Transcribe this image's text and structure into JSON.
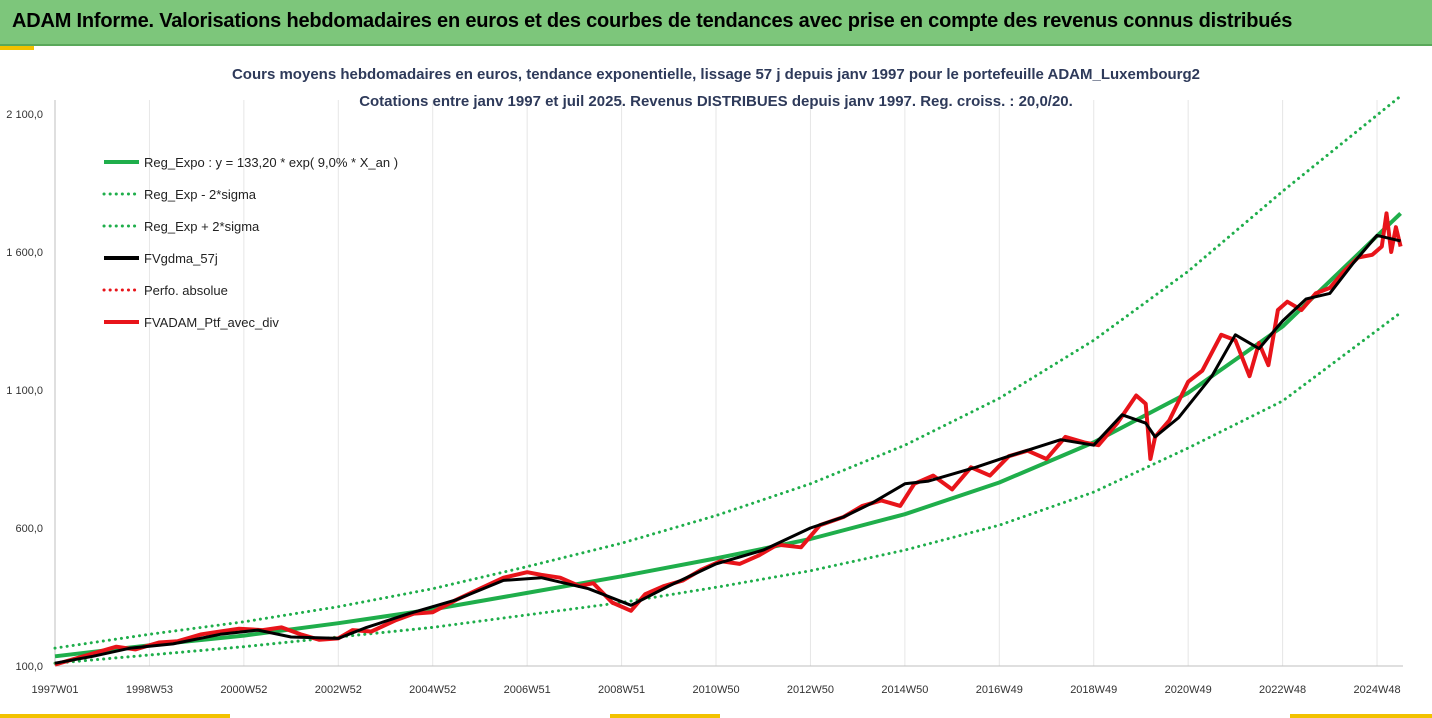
{
  "header": {
    "title": "ADAM Informe. Valorisations hebdomadaires en euros et des courbes de tendances avec prise en compte des revenus connus distribués"
  },
  "colors": {
    "banner": "#7dc67b",
    "accent": "#f2c200",
    "trend": "#1fae4b",
    "smooth": "#000000",
    "portfolio": "#e8141a",
    "grid": "#e6e6e6"
  },
  "chart_data": {
    "type": "line",
    "title": "Cours moyens hebdomadaires  en euros, tendance exponentielle, lissage 57 j depuis janv 1997 pour le portefeuille ADAM_Luxembourg2",
    "subtitle": "Cotations  entre janv 1997 et juil 2025. Revenus DISTRIBUES depuis janv 1997. Reg. croiss. : 20,0/20.",
    "xlabel": "",
    "ylabel": "",
    "ylim": [
      100,
      2100
    ],
    "xlim": [
      1997.0,
      2025.55
    ],
    "grid": "vertical",
    "legend_position": "top-left",
    "y_ticks": [
      "2 100,0",
      "1 600,0",
      "1 100,0",
      "600,0",
      "100,0"
    ],
    "y_tick_values": [
      2100,
      1600,
      1100,
      600,
      100
    ],
    "x_ticks": [
      "1997W01",
      "1998W53",
      "2000W52",
      "2002W52",
      "2004W52",
      "2006W51",
      "2008W51",
      "2010W50",
      "2012W50",
      "2014W50",
      "2016W49",
      "2018W49",
      "2020W49",
      "2022W48",
      "2024W48"
    ],
    "x_tick_values": [
      1997.0,
      1999.0,
      2001.0,
      2003.0,
      2005.0,
      2007.0,
      2009.0,
      2011.0,
      2013.0,
      2015.0,
      2017.0,
      2019.0,
      2021.0,
      2023.0,
      2025.0
    ],
    "series": [
      {
        "name": "Reg_Expo : y = 133,20 * exp( 9,0% *  X_an )",
        "style": "solid",
        "color": "#1fae4b",
        "x": [
          1997,
          1999,
          2001,
          2003,
          2005,
          2007,
          2009,
          2011,
          2013,
          2015,
          2017,
          2019,
          2021,
          2023,
          2025.5
        ],
        "values": [
          135,
          175,
          210,
          255,
          305,
          365,
          425,
          490,
          560,
          650,
          765,
          910,
          1090,
          1330,
          1740
        ]
      },
      {
        "name": "Reg_Exp - 2*sigma",
        "style": "dotted",
        "color": "#1fae4b",
        "x": [
          1997,
          1999,
          2001,
          2003,
          2005,
          2007,
          2009,
          2011,
          2013,
          2015,
          2017,
          2019,
          2021,
          2023,
          2025.5
        ],
        "values": [
          110,
          140,
          170,
          205,
          240,
          285,
          330,
          385,
          445,
          520,
          610,
          730,
          890,
          1060,
          1380
        ]
      },
      {
        "name": "Reg_Exp + 2*sigma",
        "style": "dotted",
        "color": "#1fae4b",
        "x": [
          1997,
          1999,
          2001,
          2003,
          2005,
          2007,
          2009,
          2011,
          2013,
          2015,
          2017,
          2019,
          2021,
          2023,
          2025.5
        ],
        "values": [
          165,
          215,
          260,
          315,
          380,
          460,
          545,
          645,
          760,
          900,
          1070,
          1280,
          1530,
          1820,
          2165
        ]
      },
      {
        "name": "FVgdma_57j",
        "style": "solid",
        "color": "#000000",
        "x": [
          1997,
          1997.8,
          1998.6,
          1999.5,
          2000.5,
          2001.3,
          2002,
          2003,
          2003.6,
          2004.5,
          2005.5,
          2006.5,
          2007.3,
          2008.3,
          2009.2,
          2010,
          2011,
          2012,
          2013,
          2013.7,
          2014.3,
          2015,
          2015.5,
          2016.5,
          2017.2,
          2018.3,
          2019,
          2019.6,
          2020.1,
          2020.3,
          2020.8,
          2021.5,
          2022,
          2022.5,
          2023,
          2023.5,
          2024,
          2024.5,
          2025,
          2025.5
        ],
        "values": [
          110,
          135,
          165,
          180,
          215,
          230,
          205,
          200,
          240,
          290,
          340,
          410,
          420,
          380,
          320,
          390,
          470,
          520,
          600,
          640,
          690,
          760,
          770,
          820,
          860,
          920,
          900,
          1010,
          980,
          930,
          1000,
          1150,
          1300,
          1250,
          1350,
          1430,
          1450,
          1560,
          1660,
          1640
        ]
      },
      {
        "name": "Perfo. absolue",
        "style": "dotted",
        "color": "#e8141a",
        "x": [],
        "values": []
      },
      {
        "name": "FVADAM_Ptf_avec_div",
        "style": "solid",
        "color": "#e8141a",
        "x": [
          1997,
          1997.5,
          1997.9,
          1998.3,
          1998.7,
          1999.2,
          1999.6,
          2000.1,
          2000.5,
          2000.9,
          2001.4,
          2001.8,
          2002.2,
          2002.6,
          2003.0,
          2003.3,
          2003.7,
          2004.2,
          2004.6,
          2005.0,
          2005.5,
          2006.0,
          2006.5,
          2007.0,
          2007.3,
          2007.7,
          2008.1,
          2008.4,
          2008.8,
          2009.2,
          2009.5,
          2009.9,
          2010.3,
          2010.7,
          2011.1,
          2011.5,
          2011.9,
          2012.3,
          2012.8,
          2013.2,
          2013.7,
          2014.1,
          2014.5,
          2014.9,
          2015.2,
          2015.6,
          2016.0,
          2016.4,
          2016.8,
          2017.2,
          2017.6,
          2018.0,
          2018.4,
          2018.8,
          2019.1,
          2019.5,
          2019.9,
          2020.1,
          2020.2,
          2020.3,
          2020.6,
          2021.0,
          2021.3,
          2021.7,
          2022.0,
          2022.3,
          2022.5,
          2022.7,
          2022.9,
          2023.1,
          2023.4,
          2023.7,
          2024.0,
          2024.3,
          2024.6,
          2024.9,
          2025.1,
          2025.2,
          2025.3,
          2025.4,
          2025.5
        ],
        "values": [
          105,
          130,
          150,
          170,
          160,
          185,
          190,
          215,
          225,
          235,
          230,
          240,
          215,
          195,
          200,
          230,
          225,
          265,
          290,
          295,
          340,
          380,
          420,
          440,
          430,
          420,
          390,
          400,
          330,
          300,
          360,
          390,
          410,
          450,
          480,
          470,
          500,
          540,
          530,
          610,
          640,
          680,
          700,
          680,
          760,
          790,
          740,
          820,
          790,
          860,
          880,
          850,
          930,
          910,
          900,
          980,
          1080,
          1050,
          850,
          930,
          990,
          1130,
          1170,
          1300,
          1280,
          1150,
          1270,
          1190,
          1390,
          1420,
          1390,
          1450,
          1470,
          1530,
          1580,
          1590,
          1620,
          1740,
          1600,
          1690,
          1620
        ]
      }
    ]
  }
}
